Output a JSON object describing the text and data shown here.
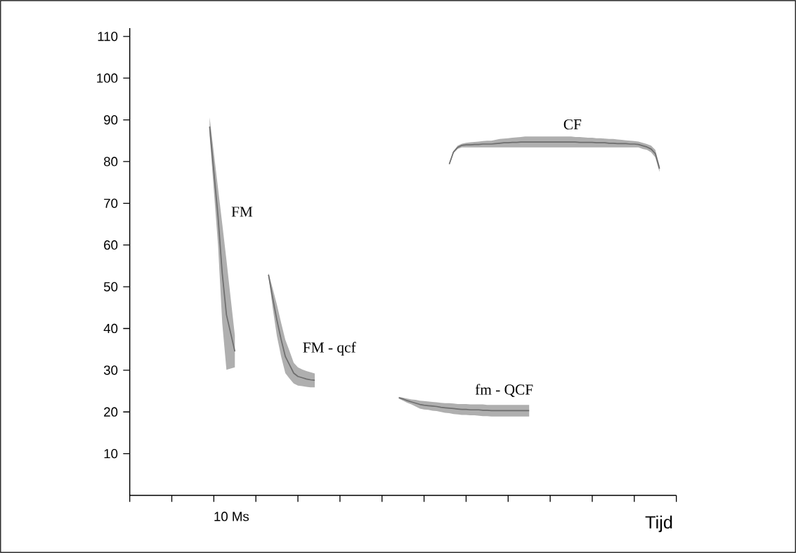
{
  "chart_data": {
    "type": "line",
    "xlabel": "Tijd",
    "ylim": [
      0,
      112
    ],
    "yticks": [
      10,
      20,
      30,
      40,
      50,
      60,
      70,
      80,
      90,
      100,
      110
    ],
    "categories": [
      null,
      null,
      null,
      null,
      null,
      null,
      null,
      null,
      null,
      null,
      null,
      null,
      null,
      null,
      null,
      null,
      null,
      null,
      null,
      null,
      null,
      null,
      null,
      null,
      null,
      null,
      null,
      null,
      null,
      null,
      null,
      null,
      null,
      null,
      null,
      null,
      null,
      null,
      null,
      null,
      null,
      null,
      null,
      null,
      null,
      null,
      null,
      null,
      null,
      null,
      null,
      null,
      null,
      null,
      null,
      null,
      null,
      null,
      null,
      null,
      null,
      null,
      null,
      null,
      null,
      null,
      null,
      null,
      null,
      null,
      null,
      null,
      null,
      null,
      null,
      null,
      null,
      null,
      null,
      null,
      null,
      null,
      null,
      null,
      null,
      null,
      null,
      null,
      null,
      null,
      null,
      null,
      null,
      null,
      null,
      null,
      null,
      null,
      null,
      null,
      null,
      null,
      null,
      null,
      null,
      null,
      null,
      null,
      null,
      null,
      null,
      null,
      null,
      null,
      null,
      null,
      null,
      null,
      null,
      null,
      null,
      null,
      null,
      null,
      null,
      null,
      null,
      null,
      null,
      null,
      null
    ],
    "series": [
      {
        "name": "FM",
        "color": "#6e6e6e",
        "values": [
          null,
          null,
          null,
          null,
          null,
          null,
          null,
          null,
          null,
          null,
          null,
          null,
          null,
          null,
          null,
          null,
          null,
          null,
          null,
          88.4,
          77.6,
          66.8,
          53.2,
          43.3,
          38.9,
          34.5,
          null,
          null,
          null,
          null,
          null,
          null,
          null,
          null,
          null,
          null,
          null,
          null,
          null,
          null,
          null,
          null,
          null,
          null,
          null,
          null,
          null,
          null,
          null,
          null,
          null,
          null,
          null,
          null,
          null,
          null,
          null,
          null,
          null,
          null,
          null,
          null,
          null,
          null,
          null,
          null,
          null,
          null,
          null,
          null,
          null,
          null,
          null,
          null,
          null,
          null,
          null,
          null,
          null,
          null,
          null,
          null,
          null,
          null,
          null,
          null,
          null,
          null,
          null,
          null,
          null,
          null,
          null,
          null,
          null,
          null,
          null,
          null,
          null,
          null,
          null,
          null,
          null,
          null,
          null,
          null,
          null,
          null,
          null,
          null,
          null,
          null,
          null,
          null,
          null,
          null,
          null,
          null,
          null,
          null,
          null,
          null,
          null,
          null,
          null,
          null,
          null,
          null,
          null,
          null,
          null
        ],
        "lower": [
          null,
          null,
          null,
          null,
          null,
          null,
          null,
          null,
          null,
          null,
          null,
          null,
          null,
          null,
          null,
          null,
          null,
          null,
          null,
          86.2,
          73.1,
          60,
          41.3,
          30.1,
          30.4,
          30.7,
          null,
          null,
          null,
          null,
          null,
          null,
          null,
          null,
          null,
          null,
          null,
          null,
          null,
          null,
          null,
          null,
          null,
          null,
          null,
          null,
          null,
          null,
          null,
          null,
          null,
          null,
          null,
          null,
          null,
          null,
          null,
          null,
          null,
          null,
          null,
          null,
          null,
          null,
          null,
          null,
          null,
          null,
          null,
          null,
          null,
          null,
          null,
          null,
          null,
          null,
          null,
          null,
          null,
          null,
          null,
          null,
          null,
          null,
          null,
          null,
          null,
          null,
          null,
          null,
          null,
          null,
          null,
          null,
          null,
          null,
          null,
          null,
          null,
          null,
          null,
          null,
          null,
          null,
          null,
          null,
          null,
          null,
          null,
          null,
          null,
          null,
          null,
          null,
          null,
          null,
          null,
          null,
          null,
          null,
          null,
          null,
          null,
          null,
          null,
          null,
          null,
          null,
          null,
          null,
          null
        ],
        "upper": [
          null,
          null,
          null,
          null,
          null,
          null,
          null,
          null,
          null,
          null,
          null,
          null,
          null,
          null,
          null,
          null,
          null,
          null,
          null,
          90.6,
          82.1,
          73.6,
          65.1,
          56.4,
          47.3,
          38.3,
          null,
          null,
          null,
          null,
          null,
          null,
          null,
          null,
          null,
          null,
          null,
          null,
          null,
          null,
          null,
          null,
          null,
          null,
          null,
          null,
          null,
          null,
          null,
          null,
          null,
          null,
          null,
          null,
          null,
          null,
          null,
          null,
          null,
          null,
          null,
          null,
          null,
          null,
          null,
          null,
          null,
          null,
          null,
          null,
          null,
          null,
          null,
          null,
          null,
          null,
          null,
          null,
          null,
          null,
          null,
          null,
          null,
          null,
          null,
          null,
          null,
          null,
          null,
          null,
          null,
          null,
          null,
          null,
          null,
          null,
          null,
          null,
          null,
          null,
          null,
          null,
          null,
          null,
          null,
          null,
          null,
          null,
          null,
          null,
          null,
          null,
          null,
          null,
          null,
          null,
          null,
          null,
          null,
          null,
          null,
          null,
          null,
          null,
          null,
          null,
          null,
          null,
          null,
          null,
          null
        ]
      },
      {
        "name": "FM - qcf",
        "color": "#6e6e6e",
        "values": [
          null,
          null,
          null,
          null,
          null,
          null,
          null,
          null,
          null,
          null,
          null,
          null,
          null,
          null,
          null,
          null,
          null,
          null,
          null,
          null,
          null,
          null,
          null,
          null,
          null,
          null,
          null,
          null,
          null,
          null,
          null,
          null,
          null,
          52.9,
          47.3,
          42.0,
          37.4,
          33.3,
          31.3,
          29.3,
          28.5,
          28.2,
          27.9,
          27.7,
          27.6,
          null,
          null,
          null,
          null,
          null,
          null,
          null,
          null,
          null,
          null,
          null,
          null,
          null,
          null,
          null,
          null,
          null,
          null,
          null,
          null,
          null,
          null,
          null,
          null,
          null,
          null,
          null,
          null,
          null,
          null,
          null,
          null,
          null,
          null,
          null,
          null,
          null,
          null,
          null,
          null,
          null,
          null,
          null,
          null,
          null,
          null,
          null,
          null,
          null,
          null,
          null,
          null,
          null,
          null,
          null,
          null,
          null,
          null,
          null,
          null,
          null,
          null,
          null,
          null,
          null,
          null,
          null,
          null,
          null,
          null,
          null,
          null,
          null,
          null,
          null,
          null,
          null,
          null,
          null,
          null,
          null,
          null,
          null,
          null,
          null,
          null
        ],
        "lower": [
          null,
          null,
          null,
          null,
          null,
          null,
          null,
          null,
          null,
          null,
          null,
          null,
          null,
          null,
          null,
          null,
          null,
          null,
          null,
          null,
          null,
          null,
          null,
          null,
          null,
          null,
          null,
          null,
          null,
          null,
          null,
          null,
          null,
          52.5,
          44.9,
          38.2,
          33.3,
          29.3,
          28.0,
          26.8,
          26.3,
          26.2,
          26.0,
          25.9,
          25.9,
          null,
          null,
          null,
          null,
          null,
          null,
          null,
          null,
          null,
          null,
          null,
          null,
          null,
          null,
          null,
          null,
          null,
          null,
          null,
          null,
          null,
          null,
          null,
          null,
          null,
          null,
          null,
          null,
          null,
          null,
          null,
          null,
          null,
          null,
          null,
          null,
          null,
          null,
          null,
          null,
          null,
          null,
          null,
          null,
          null,
          null,
          null,
          null,
          null,
          null,
          null,
          null,
          null,
          null,
          null,
          null,
          null,
          null,
          null,
          null,
          null,
          null,
          null,
          null,
          null,
          null,
          null,
          null,
          null,
          null,
          null,
          null,
          null,
          null,
          null,
          null,
          null,
          null,
          null,
          null,
          null,
          null,
          null,
          null,
          null,
          null
        ],
        "upper": [
          null,
          null,
          null,
          null,
          null,
          null,
          null,
          null,
          null,
          null,
          null,
          null,
          null,
          null,
          null,
          null,
          null,
          null,
          null,
          null,
          null,
          null,
          null,
          null,
          null,
          null,
          null,
          null,
          null,
          null,
          null,
          null,
          null,
          53.3,
          49.6,
          45.7,
          41.4,
          37.3,
          34.6,
          31.8,
          30.7,
          30.2,
          29.8,
          29.5,
          29.2,
          null,
          null,
          null,
          null,
          null,
          null,
          null,
          null,
          null,
          null,
          null,
          null,
          null,
          null,
          null,
          null,
          null,
          null,
          null,
          null,
          null,
          null,
          null,
          null,
          null,
          null,
          null,
          null,
          null,
          null,
          null,
          null,
          null,
          null,
          null,
          null,
          null,
          null,
          null,
          null,
          null,
          null,
          null,
          null,
          null,
          null,
          null,
          null,
          null,
          null,
          null,
          null,
          null,
          null,
          null,
          null,
          null,
          null,
          null,
          null,
          null,
          null,
          null,
          null,
          null,
          null,
          null,
          null,
          null,
          null,
          null,
          null,
          null,
          null,
          null,
          null,
          null,
          null,
          null,
          null,
          null,
          null,
          null,
          null,
          null,
          null
        ]
      },
      {
        "name": "fm - QCF",
        "color": "#6e6e6e",
        "values": [
          null,
          null,
          null,
          null,
          null,
          null,
          null,
          null,
          null,
          null,
          null,
          null,
          null,
          null,
          null,
          null,
          null,
          null,
          null,
          null,
          null,
          null,
          null,
          null,
          null,
          null,
          null,
          null,
          null,
          null,
          null,
          null,
          null,
          null,
          null,
          null,
          null,
          null,
          null,
          null,
          null,
          null,
          null,
          null,
          null,
          null,
          null,
          null,
          null,
          null,
          null,
          null,
          null,
          null,
          null,
          null,
          null,
          null,
          null,
          null,
          null,
          null,
          null,
          null,
          23.4,
          23.1,
          22.7,
          22.4,
          22.1,
          21.8,
          21.6,
          21.5,
          21.4,
          21.3,
          21.1,
          21.0,
          20.9,
          20.8,
          20.7,
          20.6,
          20.6,
          20.5,
          20.5,
          20.5,
          20.4,
          20.4,
          20.3,
          20.3,
          20.3,
          20.3,
          20.3,
          20.3,
          20.3,
          20.3,
          20.3,
          20.3,
          null,
          null,
          null,
          null,
          null,
          null,
          null,
          null,
          null,
          null,
          null,
          null,
          null,
          null,
          null,
          null,
          null,
          null,
          null,
          null,
          null,
          null,
          null,
          null,
          null,
          null,
          null,
          null,
          null,
          null,
          null,
          null,
          null,
          null,
          null
        ],
        "lower": [
          null,
          null,
          null,
          null,
          null,
          null,
          null,
          null,
          null,
          null,
          null,
          null,
          null,
          null,
          null,
          null,
          null,
          null,
          null,
          null,
          null,
          null,
          null,
          null,
          null,
          null,
          null,
          null,
          null,
          null,
          null,
          null,
          null,
          null,
          null,
          null,
          null,
          null,
          null,
          null,
          null,
          null,
          null,
          null,
          null,
          null,
          null,
          null,
          null,
          null,
          null,
          null,
          null,
          null,
          null,
          null,
          null,
          null,
          null,
          null,
          null,
          null,
          null,
          null,
          23.2,
          22.7,
          22.2,
          21.8,
          21.3,
          20.8,
          20.6,
          20.5,
          20.3,
          20.2,
          20.0,
          19.8,
          19.7,
          19.5,
          19.4,
          19.3,
          19.3,
          19.2,
          19.2,
          19.1,
          19.0,
          19.0,
          18.9,
          18.9,
          18.9,
          18.9,
          18.9,
          18.9,
          18.9,
          18.9,
          18.9,
          18.9,
          null,
          null,
          null,
          null,
          null,
          null,
          null,
          null,
          null,
          null,
          null,
          null,
          null,
          null,
          null,
          null,
          null,
          null,
          null,
          null,
          null,
          null,
          null,
          null,
          null,
          null,
          null,
          null,
          null,
          null,
          null,
          null,
          null,
          null,
          null
        ],
        "upper": [
          null,
          null,
          null,
          null,
          null,
          null,
          null,
          null,
          null,
          null,
          null,
          null,
          null,
          null,
          null,
          null,
          null,
          null,
          null,
          null,
          null,
          null,
          null,
          null,
          null,
          null,
          null,
          null,
          null,
          null,
          null,
          null,
          null,
          null,
          null,
          null,
          null,
          null,
          null,
          null,
          null,
          null,
          null,
          null,
          null,
          null,
          null,
          null,
          null,
          null,
          null,
          null,
          null,
          null,
          null,
          null,
          null,
          null,
          null,
          null,
          null,
          null,
          null,
          null,
          23.6,
          23.4,
          23.2,
          23.0,
          22.9,
          22.7,
          22.6,
          22.5,
          22.4,
          22.3,
          22.2,
          22.1,
          22.1,
          22.0,
          21.9,
          21.9,
          21.9,
          21.8,
          21.8,
          21.8,
          21.8,
          21.7,
          21.7,
          21.7,
          21.7,
          21.7,
          21.7,
          21.7,
          21.7,
          21.7,
          21.7,
          21.7,
          null,
          null,
          null,
          null,
          null,
          null,
          null,
          null,
          null,
          null,
          null,
          null,
          null,
          null,
          null,
          null,
          null,
          null,
          null,
          null,
          null,
          null,
          null,
          null,
          null,
          null,
          null,
          null,
          null,
          null,
          null,
          null,
          null,
          null,
          null
        ]
      },
      {
        "name": "CF",
        "color": "#6e6e6e",
        "values": [
          null,
          null,
          null,
          null,
          null,
          null,
          null,
          null,
          null,
          null,
          null,
          null,
          null,
          null,
          null,
          null,
          null,
          null,
          null,
          null,
          null,
          null,
          null,
          null,
          null,
          null,
          null,
          null,
          null,
          null,
          null,
          null,
          null,
          null,
          null,
          null,
          null,
          null,
          null,
          null,
          null,
          null,
          null,
          null,
          null,
          null,
          null,
          null,
          null,
          null,
          null,
          null,
          null,
          null,
          null,
          null,
          null,
          null,
          null,
          null,
          null,
          null,
          null,
          null,
          null,
          null,
          null,
          null,
          null,
          null,
          null,
          null,
          null,
          null,
          null,
          null,
          79.4,
          82.3,
          83.4,
          83.9,
          84.0,
          84.0,
          84.1,
          84.1,
          84.2,
          84.2,
          84.2,
          84.3,
          84.4,
          84.5,
          84.5,
          84.6,
          84.6,
          84.7,
          84.7,
          84.7,
          84.7,
          84.7,
          84.7,
          84.7,
          84.7,
          84.7,
          84.7,
          84.7,
          84.7,
          84.7,
          84.7,
          84.6,
          84.6,
          84.6,
          84.6,
          84.5,
          84.5,
          84.5,
          84.4,
          84.4,
          84.3,
          84.3,
          84.3,
          84.2,
          84.2,
          84.1,
          83.8,
          83.5,
          83.0,
          81.9,
          78.3,
          null,
          null,
          null,
          null
        ],
        "lower": [
          null,
          null,
          null,
          null,
          null,
          null,
          null,
          null,
          null,
          null,
          null,
          null,
          null,
          null,
          null,
          null,
          null,
          null,
          null,
          null,
          null,
          null,
          null,
          null,
          null,
          null,
          null,
          null,
          null,
          null,
          null,
          null,
          null,
          null,
          null,
          null,
          null,
          null,
          null,
          null,
          null,
          null,
          null,
          null,
          null,
          null,
          null,
          null,
          null,
          null,
          null,
          null,
          null,
          null,
          null,
          null,
          null,
          null,
          null,
          null,
          null,
          null,
          null,
          null,
          null,
          null,
          null,
          null,
          null,
          null,
          null,
          null,
          null,
          null,
          null,
          null,
          79.2,
          82.0,
          83.0,
          83.4,
          83.4,
          83.4,
          83.4,
          83.4,
          83.4,
          83.4,
          83.4,
          83.4,
          83.4,
          83.4,
          83.4,
          83.4,
          83.4,
          83.4,
          83.4,
          83.4,
          83.4,
          83.4,
          83.4,
          83.4,
          83.4,
          83.4,
          83.4,
          83.4,
          83.4,
          83.4,
          83.4,
          83.4,
          83.4,
          83.4,
          83.4,
          83.4,
          83.4,
          83.4,
          83.4,
          83.4,
          83.4,
          83.4,
          83.4,
          83.4,
          83.4,
          83.4,
          83.0,
          82.8,
          82.2,
          81.0,
          77.5,
          null,
          null,
          null,
          null
        ],
        "upper": [
          null,
          null,
          null,
          null,
          null,
          null,
          null,
          null,
          null,
          null,
          null,
          null,
          null,
          null,
          null,
          null,
          null,
          null,
          null,
          null,
          null,
          null,
          null,
          null,
          null,
          null,
          null,
          null,
          null,
          null,
          null,
          null,
          null,
          null,
          null,
          null,
          null,
          null,
          null,
          null,
          null,
          null,
          null,
          null,
          null,
          null,
          null,
          null,
          null,
          null,
          null,
          null,
          null,
          null,
          null,
          null,
          null,
          null,
          null,
          null,
          null,
          null,
          null,
          null,
          null,
          null,
          null,
          null,
          null,
          null,
          null,
          null,
          null,
          null,
          null,
          null,
          79.6,
          82.5,
          83.8,
          84.3,
          84.5,
          84.6,
          84.7,
          84.8,
          84.9,
          85.0,
          85.0,
          85.2,
          85.4,
          85.5,
          85.6,
          85.7,
          85.8,
          85.9,
          86.0,
          86.0,
          86.0,
          86.0,
          86.0,
          86.0,
          86.0,
          86.0,
          86.0,
          86.0,
          86.0,
          86.0,
          85.9,
          85.9,
          85.8,
          85.7,
          85.7,
          85.6,
          85.6,
          85.5,
          85.4,
          85.4,
          85.3,
          85.2,
          85.1,
          85.0,
          84.9,
          84.8,
          84.5,
          84.2,
          83.8,
          82.8,
          79.0,
          null,
          null,
          null,
          null
        ]
      }
    ],
    "annotations": [
      "10 Ms"
    ]
  }
}
